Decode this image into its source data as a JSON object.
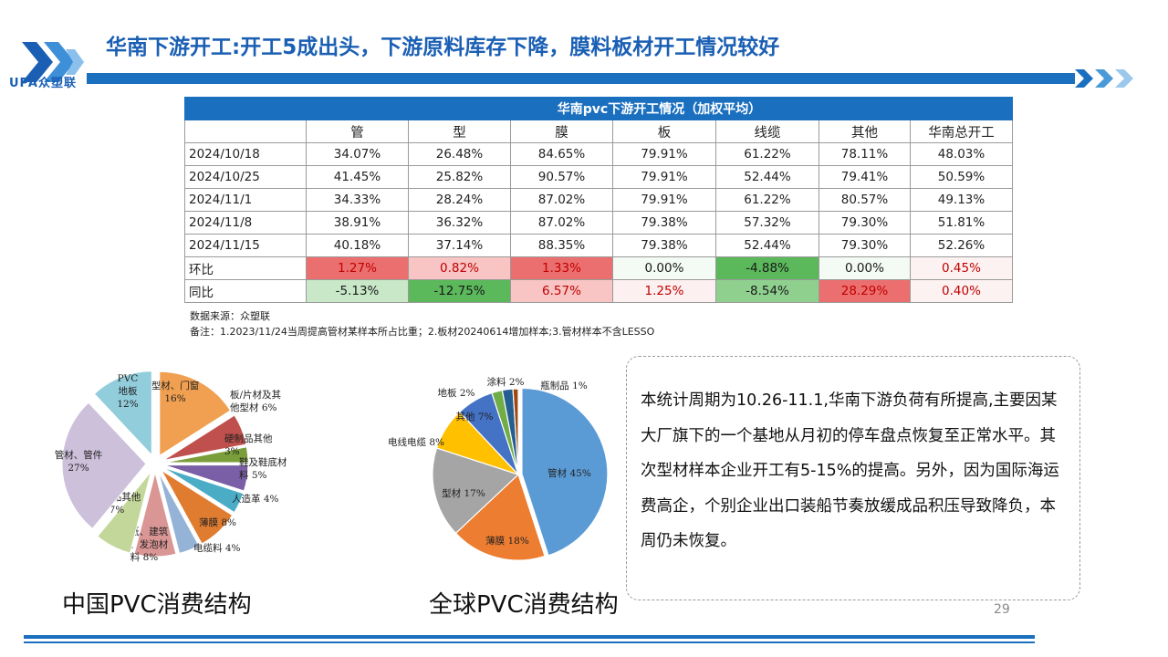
{
  "title": "华南下游开工:开工5成出头，下游原料库存下降，膜料板材开工情况较好",
  "logo_text": "UPA众塑联",
  "table": {
    "header": "华南pvc下游开工情况（加权平均）",
    "columns": [
      "管",
      "型",
      "膜",
      "板",
      "线缆",
      "其他",
      "华南总开工"
    ],
    "rows": [
      {
        "date": "2024/10/18",
        "values": [
          "34.07%",
          "26.48%",
          "84.65%",
          "79.91%",
          "61.22%",
          "78.11%",
          "48.03%"
        ]
      },
      {
        "date": "2024/10/25",
        "values": [
          "41.45%",
          "25.82%",
          "90.57%",
          "79.91%",
          "52.44%",
          "79.41%",
          "50.59%"
        ]
      },
      {
        "date": "2024/11/1",
        "values": [
          "34.33%",
          "28.24%",
          "87.02%",
          "79.91%",
          "61.22%",
          "80.57%",
          "49.13%"
        ]
      },
      {
        "date": "2024/11/8",
        "values": [
          "38.91%",
          "36.32%",
          "87.02%",
          "79.38%",
          "57.32%",
          "79.30%",
          "51.81%"
        ]
      },
      {
        "date": "2024/11/15",
        "values": [
          "40.18%",
          "37.14%",
          "88.35%",
          "79.38%",
          "52.44%",
          "79.30%",
          "52.26%"
        ]
      }
    ],
    "mom": {
      "label": "环比",
      "values": [
        "1.27%",
        "0.82%",
        "1.33%",
        "0.00%",
        "-4.88%",
        "0.00%",
        "0.45%"
      ]
    },
    "yoy": {
      "label": "同比",
      "values": [
        "-5.13%",
        "-12.75%",
        "6.57%",
        "1.25%",
        "-8.54%",
        "28.29%",
        "0.40%"
      ]
    },
    "source": "数据来源：众塑联",
    "note": "备注：1.2023/11/24当周提高管材某样本所占比重；2.板材20240614增加样本;3.管材样本不含LESSO"
  },
  "text_box": "本统计周期为10.26-11.1,华南下游负荷有所提高,主要因某大厂旗下的一个基地从月初的停车盘点恢复至正常水平。其次型材样本企业开工有5-15%的提高。另外，因为国际海运费高企，个别企业出口装船节奏放缓成品积压导致降负，本周仍未恢复。",
  "caption_china": "中国PVC消费结构",
  "caption_global": "全球PVC消费结构",
  "page_number": "29",
  "colors": {
    "brand_blue": "#1a6fbf",
    "title_blue": "#1a5fb4",
    "red_fill": "#f28b8b",
    "green_fill": "#8fd08f"
  },
  "chart_data": [
    {
      "type": "pie",
      "title": "中国PVC消费结构",
      "slices": [
        {
          "label_lines": [
            "型材、门窗",
            "16%"
          ],
          "value": 16,
          "color": "#f0a050"
        },
        {
          "label_lines": [
            "板/片材及其",
            "他型材 6%"
          ],
          "value": 6,
          "color": "#c0504d"
        },
        {
          "label_lines": [
            "硬制品其他",
            "3%"
          ],
          "value": 3,
          "color": "#7a9e3a"
        },
        {
          "label_lines": [
            "鞋及鞋底材",
            "料 5%"
          ],
          "value": 5,
          "color": "#7a5ea6"
        },
        {
          "label_lines": [
            "人造革 4%"
          ],
          "value": 4,
          "color": "#4bacc6"
        },
        {
          "label_lines": [
            "薄膜 8%"
          ],
          "value": 8,
          "color": "#e07c30"
        },
        {
          "label_lines": [
            "电缆料 4%"
          ],
          "value": 4,
          "color": "#95b3d7"
        },
        {
          "label_lines": [
            "壁纸、建筑",
            "革、发泡材",
            "料 8%"
          ],
          "value": 8,
          "color": "#d99694"
        },
        {
          "label_lines": [
            "软制品其他",
            "7%"
          ],
          "value": 7,
          "color": "#c4d79b"
        },
        {
          "label_lines": [
            "管材、管件",
            "27%"
          ],
          "value": 27,
          "color": "#ccc0da"
        },
        {
          "label_lines": [
            "PVC",
            "地板",
            "12%"
          ],
          "value": 12,
          "color": "#92cddc"
        }
      ]
    },
    {
      "type": "pie",
      "title": "全球PVC消费结构",
      "slices": [
        {
          "label": "管材 45%",
          "value": 45,
          "color": "#5b9bd5"
        },
        {
          "label": "薄膜 18%",
          "value": 18,
          "color": "#ed7d31"
        },
        {
          "label": "型材 17%",
          "value": 17,
          "color": "#a5a5a5"
        },
        {
          "label": "电线电缆 8%",
          "value": 8,
          "color": "#ffc000"
        },
        {
          "label": "其他 7%",
          "value": 7,
          "color": "#4472c4"
        },
        {
          "label": "地板 2%",
          "value": 2,
          "color": "#70ad47"
        },
        {
          "label": "涂料 2%",
          "value": 2,
          "color": "#255e91"
        },
        {
          "label": "瓶制品 1%",
          "value": 1,
          "color": "#9e480e"
        }
      ]
    }
  ]
}
